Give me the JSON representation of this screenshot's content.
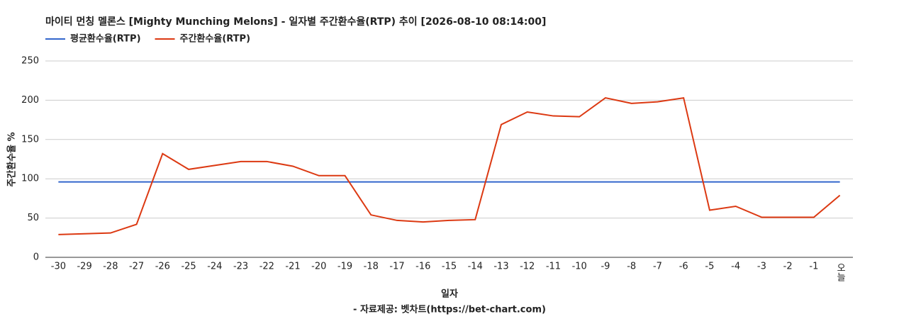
{
  "chart_data": {
    "type": "line",
    "title": "마이티 먼칭 멜론스 [Mighty Munching Melons] - 일자별 주간환수율(RTP) 추이 [2026-08-10 08:14:00]",
    "x_label": "일자",
    "y_label": "주간환수율 %",
    "source": "- 자료제공: 벳차트(https://bet-chart.com)",
    "categories": [
      "-30",
      "-29",
      "-28",
      "-27",
      "-26",
      "-25",
      "-24",
      "-23",
      "-22",
      "-21",
      "-20",
      "-19",
      "-18",
      "-17",
      "-16",
      "-15",
      "-14",
      "-13",
      "-12",
      "-11",
      "-10",
      "-9",
      "-8",
      "-7",
      "-6",
      "-5",
      "-4",
      "-3",
      "-2",
      "-1",
      "오늘"
    ],
    "series": [
      {
        "name": "평균환수율(RTP)",
        "color": "#3366cc",
        "values": [
          96,
          96,
          96,
          96,
          96,
          96,
          96,
          96,
          96,
          96,
          96,
          96,
          96,
          96,
          96,
          96,
          96,
          96,
          96,
          96,
          96,
          96,
          96,
          96,
          96,
          96,
          96,
          96,
          96,
          96,
          96
        ]
      },
      {
        "name": "주간환수율(RTP)",
        "color": "#dc3912",
        "values": [
          29,
          30,
          31,
          42,
          132,
          112,
          117,
          122,
          122,
          116,
          104,
          104,
          54,
          47,
          45,
          47,
          48,
          169,
          185,
          180,
          179,
          203,
          196,
          198,
          203,
          60,
          65,
          51,
          51,
          51,
          79
        ]
      }
    ],
    "ylim": [
      0,
      250
    ],
    "yticks": [
      0,
      50,
      100,
      150,
      200,
      250
    ],
    "grid": true,
    "legend": "top-left"
  }
}
